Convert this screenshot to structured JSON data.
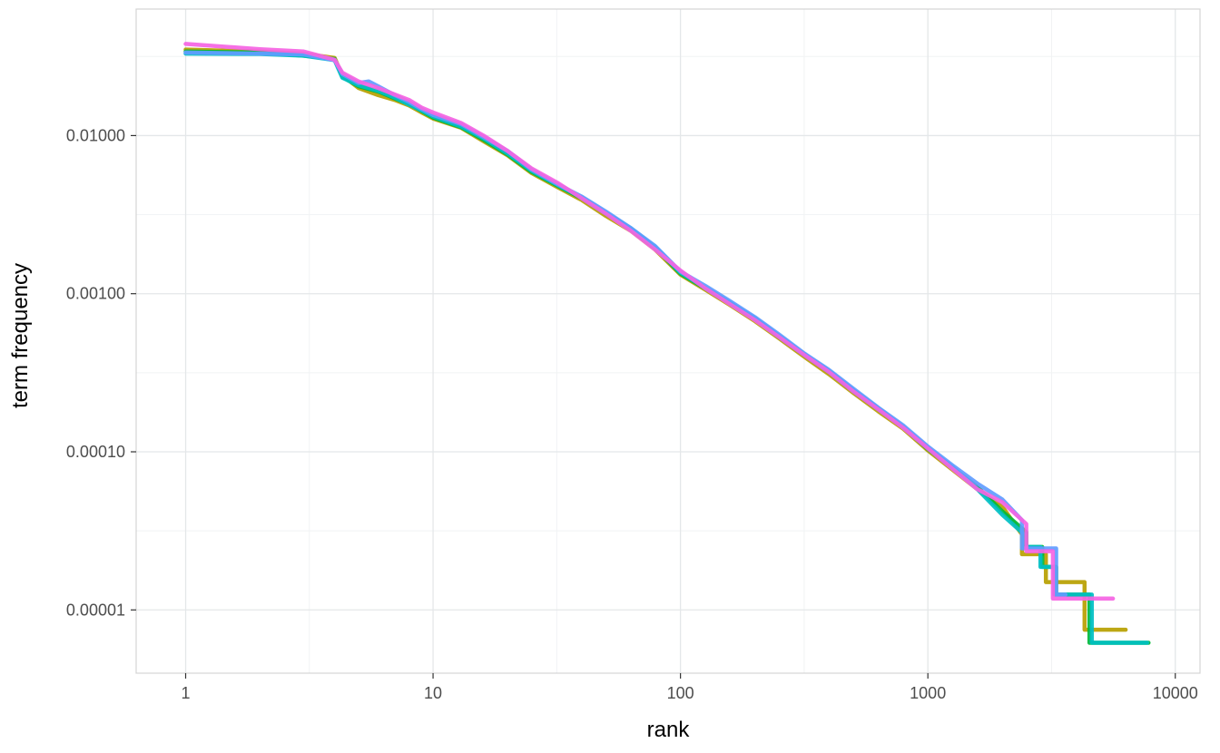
{
  "chart_data": {
    "type": "line",
    "title": "",
    "xlabel": "rank",
    "ylabel": "term frequency",
    "x_scale": "log10",
    "y_scale": "log10",
    "grid": "major+minor",
    "legend": "none",
    "x_domain_log10": [
      -0.2,
      4.1
    ],
    "y_domain_log10": [
      -5.4,
      -1.2
    ],
    "x_ticks": [
      {
        "value": 1,
        "label": "1"
      },
      {
        "value": 10,
        "label": "10"
      },
      {
        "value": 100,
        "label": "100"
      },
      {
        "value": 1000,
        "label": "1000"
      },
      {
        "value": 10000,
        "label": "10000"
      }
    ],
    "y_ticks": [
      {
        "value": 1e-05,
        "label": "0.00001"
      },
      {
        "value": 0.0001,
        "label": "0.00010"
      },
      {
        "value": 0.001,
        "label": "0.00100"
      },
      {
        "value": 0.01,
        "label": "0.01000"
      }
    ],
    "x_minor_ticks_log10": [
      0.5,
      1.5,
      2.5,
      3.5
    ],
    "y_minor_ticks_log10": [
      -4.5,
      -3.5,
      -2.5,
      -1.5
    ],
    "series": [
      {
        "name": "series-olive",
        "color": "#b79f00",
        "points": [
          [
            1,
            0.035
          ],
          [
            2,
            0.034
          ],
          [
            3,
            0.033
          ],
          [
            4,
            0.031
          ],
          [
            4.3,
            0.024
          ],
          [
            5,
            0.02
          ],
          [
            6,
            0.018
          ],
          [
            7,
            0.0168
          ],
          [
            8,
            0.0155
          ],
          [
            9,
            0.014
          ],
          [
            10,
            0.0128
          ],
          [
            13,
            0.0112
          ],
          [
            16,
            0.0092
          ],
          [
            20,
            0.0075
          ],
          [
            25,
            0.0058
          ],
          [
            32,
            0.0047
          ],
          [
            40,
            0.0039
          ],
          [
            50,
            0.0031
          ],
          [
            63,
            0.0025
          ],
          [
            79,
            0.0019
          ],
          [
            100,
            0.00132
          ],
          [
            126,
            0.00106
          ],
          [
            158,
            0.00085
          ],
          [
            200,
            0.00067
          ],
          [
            251,
            0.00052
          ],
          [
            316,
            0.0004
          ],
          [
            398,
            0.00031
          ],
          [
            501,
            0.000235
          ],
          [
            631,
            0.00018
          ],
          [
            794,
            0.00014
          ],
          [
            1000,
            0.000102
          ],
          [
            1259,
            7.7e-05
          ],
          [
            1585,
            5.8e-05
          ],
          [
            2000,
            4.5e-05
          ],
          [
            2400,
            3e-05
          ],
          [
            2400,
            2.25e-05
          ],
          [
            3000,
            2.25e-05
          ],
          [
            3000,
            1.5e-05
          ],
          [
            4300,
            1.5e-05
          ],
          [
            4300,
            7.5e-06
          ],
          [
            6300,
            7.5e-06
          ]
        ]
      },
      {
        "name": "series-green",
        "color": "#00ba38",
        "points": [
          [
            1,
            0.034
          ],
          [
            2,
            0.0335
          ],
          [
            3,
            0.032
          ],
          [
            4,
            0.0305
          ],
          [
            4.3,
            0.0235
          ],
          [
            5,
            0.0205
          ],
          [
            6,
            0.019
          ],
          [
            7,
            0.0172
          ],
          [
            8,
            0.0158
          ],
          [
            9,
            0.0143
          ],
          [
            10,
            0.013
          ],
          [
            13,
            0.0113
          ],
          [
            16,
            0.0094
          ],
          [
            20,
            0.0076
          ],
          [
            25,
            0.0059
          ],
          [
            32,
            0.0048
          ],
          [
            40,
            0.004
          ],
          [
            50,
            0.0032
          ],
          [
            63,
            0.00255
          ],
          [
            79,
            0.00195
          ],
          [
            100,
            0.00134
          ],
          [
            126,
            0.00108
          ],
          [
            158,
            0.00087
          ],
          [
            200,
            0.00069
          ],
          [
            251,
            0.00053
          ],
          [
            316,
            0.00041
          ],
          [
            398,
            0.00032
          ],
          [
            501,
            0.00024
          ],
          [
            631,
            0.000185
          ],
          [
            794,
            0.000143
          ],
          [
            1000,
            0.000104
          ],
          [
            1259,
            7.9e-05
          ],
          [
            1585,
            6e-05
          ],
          [
            2000,
            4.2e-05
          ],
          [
            2500,
            3.1e-05
          ],
          [
            2500,
            2.5e-05
          ],
          [
            2900,
            2.5e-05
          ],
          [
            2900,
            1.87e-05
          ],
          [
            3300,
            1.87e-05
          ],
          [
            3300,
            1.25e-05
          ],
          [
            4500,
            1.25e-05
          ],
          [
            4500,
            6.2e-06
          ],
          [
            7800,
            6.2e-06
          ]
        ]
      },
      {
        "name": "series-teal",
        "color": "#00bfc4",
        "points": [
          [
            1,
            0.033
          ],
          [
            2,
            0.0328
          ],
          [
            3,
            0.032
          ],
          [
            4,
            0.03
          ],
          [
            4.3,
            0.0232
          ],
          [
            5,
            0.0208
          ],
          [
            6,
            0.0192
          ],
          [
            7,
            0.0174
          ],
          [
            8,
            0.0157
          ],
          [
            9,
            0.0144
          ],
          [
            10,
            0.0132
          ],
          [
            13,
            0.0114
          ],
          [
            16,
            0.0096
          ],
          [
            20,
            0.0077
          ],
          [
            25,
            0.006
          ],
          [
            32,
            0.00485
          ],
          [
            40,
            0.00405
          ],
          [
            50,
            0.00325
          ],
          [
            63,
            0.0026
          ],
          [
            79,
            0.00198
          ],
          [
            100,
            0.00136
          ],
          [
            126,
            0.00109
          ],
          [
            158,
            0.00088
          ],
          [
            200,
            0.0007
          ],
          [
            251,
            0.00054
          ],
          [
            316,
            0.000415
          ],
          [
            398,
            0.000325
          ],
          [
            501,
            0.000245
          ],
          [
            631,
            0.000188
          ],
          [
            794,
            0.000144
          ],
          [
            1000,
            0.000106
          ],
          [
            1259,
            8e-05
          ],
          [
            1585,
            5.8e-05
          ],
          [
            2000,
            4e-05
          ],
          [
            2450,
            3e-05
          ],
          [
            2450,
            2.5e-05
          ],
          [
            2850,
            2.5e-05
          ],
          [
            2850,
            1.87e-05
          ],
          [
            3250,
            1.87e-05
          ],
          [
            3250,
            1.25e-05
          ],
          [
            4600,
            1.25e-05
          ],
          [
            4600,
            6.2e-06
          ],
          [
            7700,
            6.2e-06
          ]
        ]
      },
      {
        "name": "series-blue",
        "color": "#619cff",
        "points": [
          [
            1,
            0.0335
          ],
          [
            2,
            0.033
          ],
          [
            3,
            0.0326
          ],
          [
            4,
            0.03
          ],
          [
            4.3,
            0.0245
          ],
          [
            5,
            0.0215
          ],
          [
            5.5,
            0.022
          ],
          [
            6,
            0.0205
          ],
          [
            7,
            0.018
          ],
          [
            8,
            0.0163
          ],
          [
            9,
            0.0147
          ],
          [
            10,
            0.0135
          ],
          [
            13,
            0.0118
          ],
          [
            16,
            0.0098
          ],
          [
            20,
            0.008
          ],
          [
            25,
            0.0061
          ],
          [
            32,
            0.0049
          ],
          [
            40,
            0.0041
          ],
          [
            50,
            0.0033
          ],
          [
            63,
            0.0026
          ],
          [
            79,
            0.002
          ],
          [
            100,
            0.00138
          ],
          [
            126,
            0.00112
          ],
          [
            158,
            0.0009
          ],
          [
            200,
            0.00071
          ],
          [
            251,
            0.00055
          ],
          [
            316,
            0.00042
          ],
          [
            398,
            0.00033
          ],
          [
            501,
            0.00025
          ],
          [
            631,
            0.00019
          ],
          [
            794,
            0.000147
          ],
          [
            1000,
            0.000108
          ],
          [
            1259,
            8.2e-05
          ],
          [
            1585,
            6.3e-05
          ],
          [
            2000,
            5e-05
          ],
          [
            2400,
            3.7e-05
          ],
          [
            2400,
            2.45e-05
          ],
          [
            3300,
            2.45e-05
          ],
          [
            3300,
            1.25e-05
          ],
          [
            3600,
            1.25e-05
          ]
        ]
      },
      {
        "name": "series-magenta",
        "color": "#f564e3",
        "points": [
          [
            1,
            0.038
          ],
          [
            2,
            0.0352
          ],
          [
            3,
            0.034
          ],
          [
            4,
            0.0302
          ],
          [
            4.3,
            0.025
          ],
          [
            5,
            0.022
          ],
          [
            6,
            0.02
          ],
          [
            7,
            0.0182
          ],
          [
            8,
            0.0168
          ],
          [
            9,
            0.015
          ],
          [
            10,
            0.014
          ],
          [
            13,
            0.012
          ],
          [
            16,
            0.01
          ],
          [
            20,
            0.008
          ],
          [
            25,
            0.0062
          ],
          [
            32,
            0.005
          ],
          [
            40,
            0.004
          ],
          [
            50,
            0.0032
          ],
          [
            63,
            0.0025
          ],
          [
            79,
            0.0019
          ],
          [
            100,
            0.0014
          ],
          [
            126,
            0.00108
          ],
          [
            158,
            0.00086
          ],
          [
            200,
            0.00068
          ],
          [
            251,
            0.00053
          ],
          [
            316,
            0.00041
          ],
          [
            398,
            0.00032
          ],
          [
            501,
            0.00024
          ],
          [
            631,
            0.000185
          ],
          [
            794,
            0.000142
          ],
          [
            1000,
            0.000105
          ],
          [
            1259,
            7.8e-05
          ],
          [
            1585,
            5.8e-05
          ],
          [
            2000,
            4.8e-05
          ],
          [
            2500,
            3.5e-05
          ],
          [
            2500,
            2.35e-05
          ],
          [
            3200,
            2.35e-05
          ],
          [
            3200,
            1.18e-05
          ],
          [
            5600,
            1.18e-05
          ]
        ]
      }
    ]
  },
  "style": {
    "grid_major_color": "#e4e7e9",
    "grid_minor_color": "#f1f3f4",
    "panel_border_color": "#d4d4d4",
    "tick_mark_color": "#333333",
    "tick_label_color": "#4d4d4d",
    "axis_title_color": "#000000",
    "line_width": 4.5
  }
}
